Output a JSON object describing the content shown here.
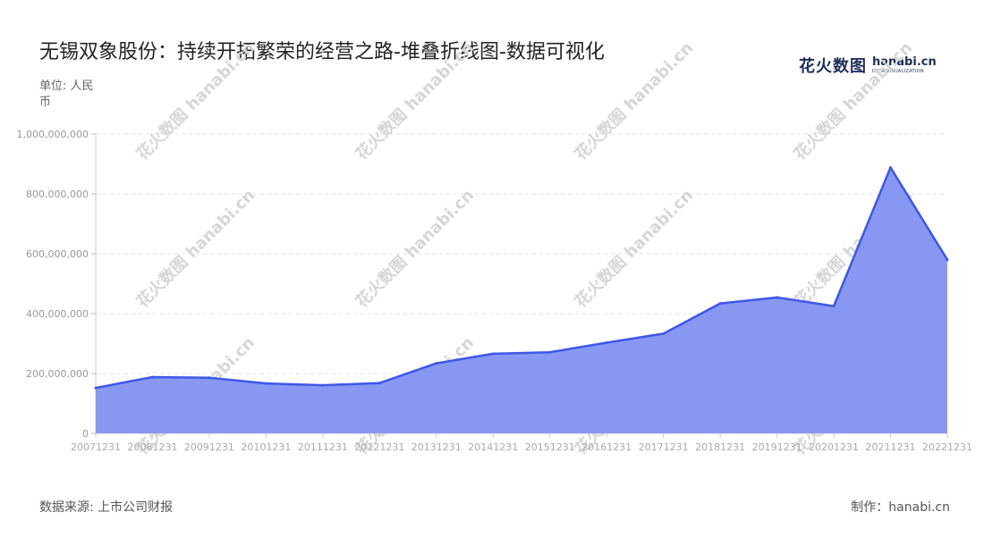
{
  "header": {
    "title": "无锡双象股份：持续开拓繁荣的经营之路-堆叠折线图-数据可视化",
    "unit_label": "单位: 人民币"
  },
  "logo": {
    "cn": "花火数图",
    "en": "hanabi.cn",
    "sub": "DATA VISUALIZATION"
  },
  "footer": {
    "source": "数据来源: 上市公司财报",
    "maker": "制作：hanabi.cn"
  },
  "watermark": {
    "text": "花火数图 hanabi.cn"
  },
  "colors": {
    "area": "#8898f2",
    "line": "#3d57e8",
    "grid": "#e2e2e2"
  },
  "chart_data": {
    "type": "area",
    "x": [
      "20071231",
      "20081231",
      "20091231",
      "20101231",
      "20111231",
      "20121231",
      "20131231",
      "20141231",
      "20151231",
      "20161231",
      "20171231",
      "20181231",
      "20191231",
      "20201231",
      "20211231",
      "20221231"
    ],
    "series": [
      {
        "values": [
          152000000,
          188000000,
          186000000,
          167000000,
          161000000,
          168000000,
          234000000,
          266000000,
          271000000,
          303000000,
          333000000,
          434000000,
          454000000,
          425000000,
          888000000,
          580000000
        ]
      }
    ],
    "ylim": [
      0,
      1000000000
    ],
    "yticks": [
      0,
      200000000,
      400000000,
      600000000,
      800000000,
      1000000000
    ],
    "ytick_labels": [
      "0",
      "200,000,000",
      "400,000,000",
      "600,000,000",
      "800,000,000",
      "1,000,000,000"
    ],
    "grid": true,
    "legend": "none"
  }
}
